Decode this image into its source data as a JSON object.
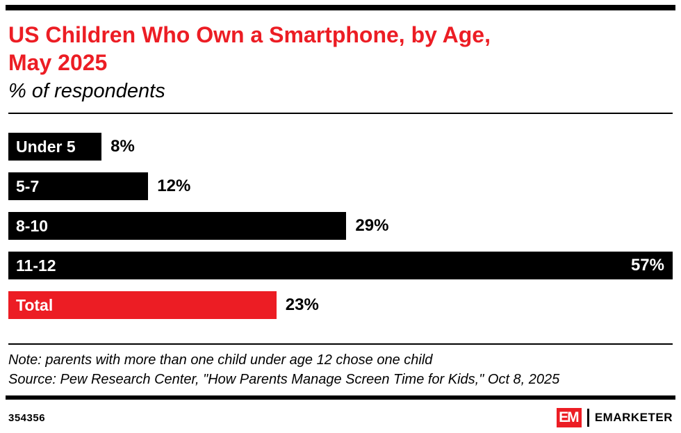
{
  "colors": {
    "accent_red": "#EC1D24",
    "bar_black": "#000000"
  },
  "header": {
    "title": "US Children Who Own a Smartphone, by Age,\nMay 2025",
    "subtitle": "% of respondents"
  },
  "chart_data": {
    "type": "bar",
    "orientation": "horizontal",
    "title": "US Children Who Own a Smartphone, by Age, May 2025",
    "subtitle": "% of respondents",
    "categories": [
      "Under 5",
      "5-7",
      "8-10",
      "11-12",
      "Total"
    ],
    "values": [
      8,
      12,
      29,
      57,
      23
    ],
    "value_labels": [
      "8%",
      "12%",
      "29%",
      "57%",
      "23%"
    ],
    "xlim": [
      0,
      57
    ],
    "bar_colors": [
      "#000000",
      "#000000",
      "#000000",
      "#000000",
      "#EC1D24"
    ],
    "grid": false,
    "legend": "none"
  },
  "notes": {
    "note": "Note: parents with more than one child under age 12 chose one child",
    "source": "Source: Pew Research Center, \"How Parents Manage Screen Time for Kids,\" Oct 8, 2025"
  },
  "footer": {
    "chart_id": "354356",
    "logo_monogram": "EM",
    "logo_name": "EMARKETER"
  }
}
